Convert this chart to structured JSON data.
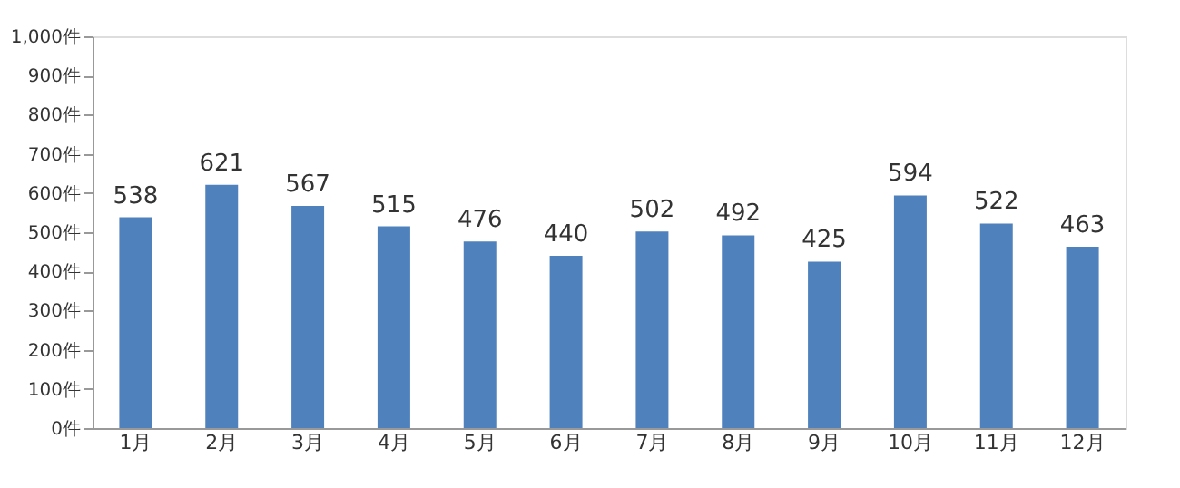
{
  "chart_data": {
    "type": "bar",
    "categories": [
      "1月",
      "2月",
      "3月",
      "4月",
      "5月",
      "6月",
      "7月",
      "8月",
      "9月",
      "10月",
      "11月",
      "12月"
    ],
    "values": [
      538,
      621,
      567,
      515,
      476,
      440,
      502,
      492,
      425,
      594,
      522,
      463
    ],
    "color": "#4f81bd",
    "ylim": [
      0,
      1000
    ],
    "yticks": [
      {
        "value": 0,
        "label": "0件"
      },
      {
        "value": 100,
        "label": "100件"
      },
      {
        "value": 200,
        "label": "200件"
      },
      {
        "value": 300,
        "label": "300件"
      },
      {
        "value": 400,
        "label": "400件"
      },
      {
        "value": 500,
        "label": "500件"
      },
      {
        "value": 600,
        "label": "600件"
      },
      {
        "value": 700,
        "label": "700件"
      },
      {
        "value": 800,
        "label": "800件"
      },
      {
        "value": 900,
        "label": "900件"
      },
      {
        "value": 1000,
        "label": "1,000件"
      }
    ],
    "data_labels": true,
    "grid": false
  }
}
